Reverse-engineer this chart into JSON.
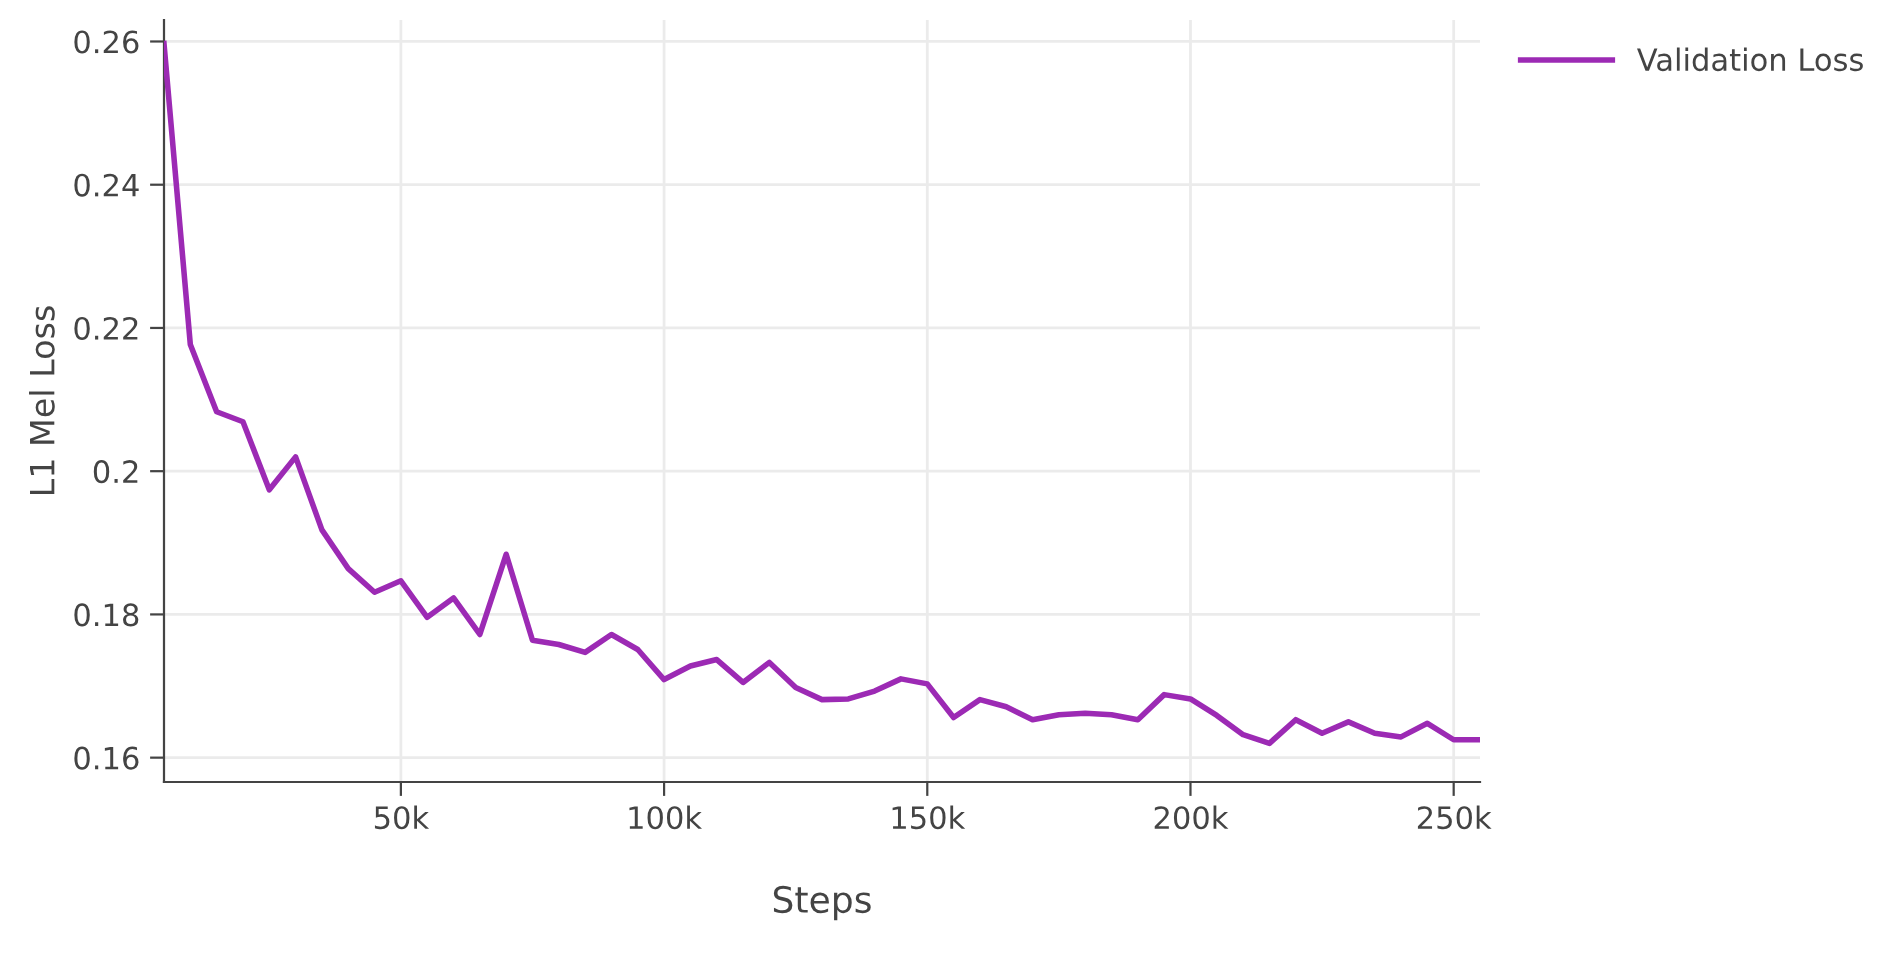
{
  "chart_data": {
    "type": "line",
    "xlabel": "Steps",
    "ylabel": "L1 Mel Loss",
    "x": [
      5000,
      10000,
      15000,
      20000,
      25000,
      30000,
      35000,
      40000,
      45000,
      50000,
      55000,
      60000,
      65000,
      70000,
      75000,
      80000,
      85000,
      90000,
      95000,
      100000,
      105000,
      110000,
      115000,
      120000,
      125000,
      130000,
      135000,
      140000,
      145000,
      150000,
      155000,
      160000,
      165000,
      170000,
      175000,
      180000,
      185000,
      190000,
      195000,
      200000,
      205000,
      210000,
      215000,
      220000,
      225000,
      230000,
      235000,
      240000,
      245000,
      250000,
      255000
    ],
    "series": [
      {
        "name": "Validation Loss",
        "color": "#9c2ab4",
        "values": [
          0.2597,
          0.2177,
          0.2083,
          0.2069,
          0.1974,
          0.202,
          0.1918,
          0.1864,
          0.1831,
          0.1847,
          0.1796,
          0.1823,
          0.1772,
          0.1884,
          0.1764,
          0.1758,
          0.1747,
          0.1772,
          0.1751,
          0.1709,
          0.1728,
          0.1737,
          0.1705,
          0.1733,
          0.1698,
          0.1681,
          0.1682,
          0.1693,
          0.171,
          0.1703,
          0.1656,
          0.1681,
          0.1671,
          0.1653,
          0.166,
          0.1662,
          0.166,
          0.1653,
          0.1688,
          0.1682,
          0.1659,
          0.1632,
          0.162,
          0.1653,
          0.1634,
          0.165,
          0.1634,
          0.1629,
          0.1648,
          0.1625,
          0.1625
        ]
      }
    ],
    "xlim": [
      5000,
      255000
    ],
    "ylim": [
      0.1566,
      0.263
    ],
    "xticks": [
      {
        "value": 50000,
        "label": "50k"
      },
      {
        "value": 100000,
        "label": "100k"
      },
      {
        "value": 150000,
        "label": "150k"
      },
      {
        "value": 200000,
        "label": "200k"
      },
      {
        "value": 250000,
        "label": "250k"
      }
    ],
    "yticks": [
      0.16,
      0.18,
      0.2,
      0.22,
      0.24,
      0.26
    ],
    "grid": true,
    "legend": "top right",
    "marker": "none",
    "line_style": "solid"
  }
}
